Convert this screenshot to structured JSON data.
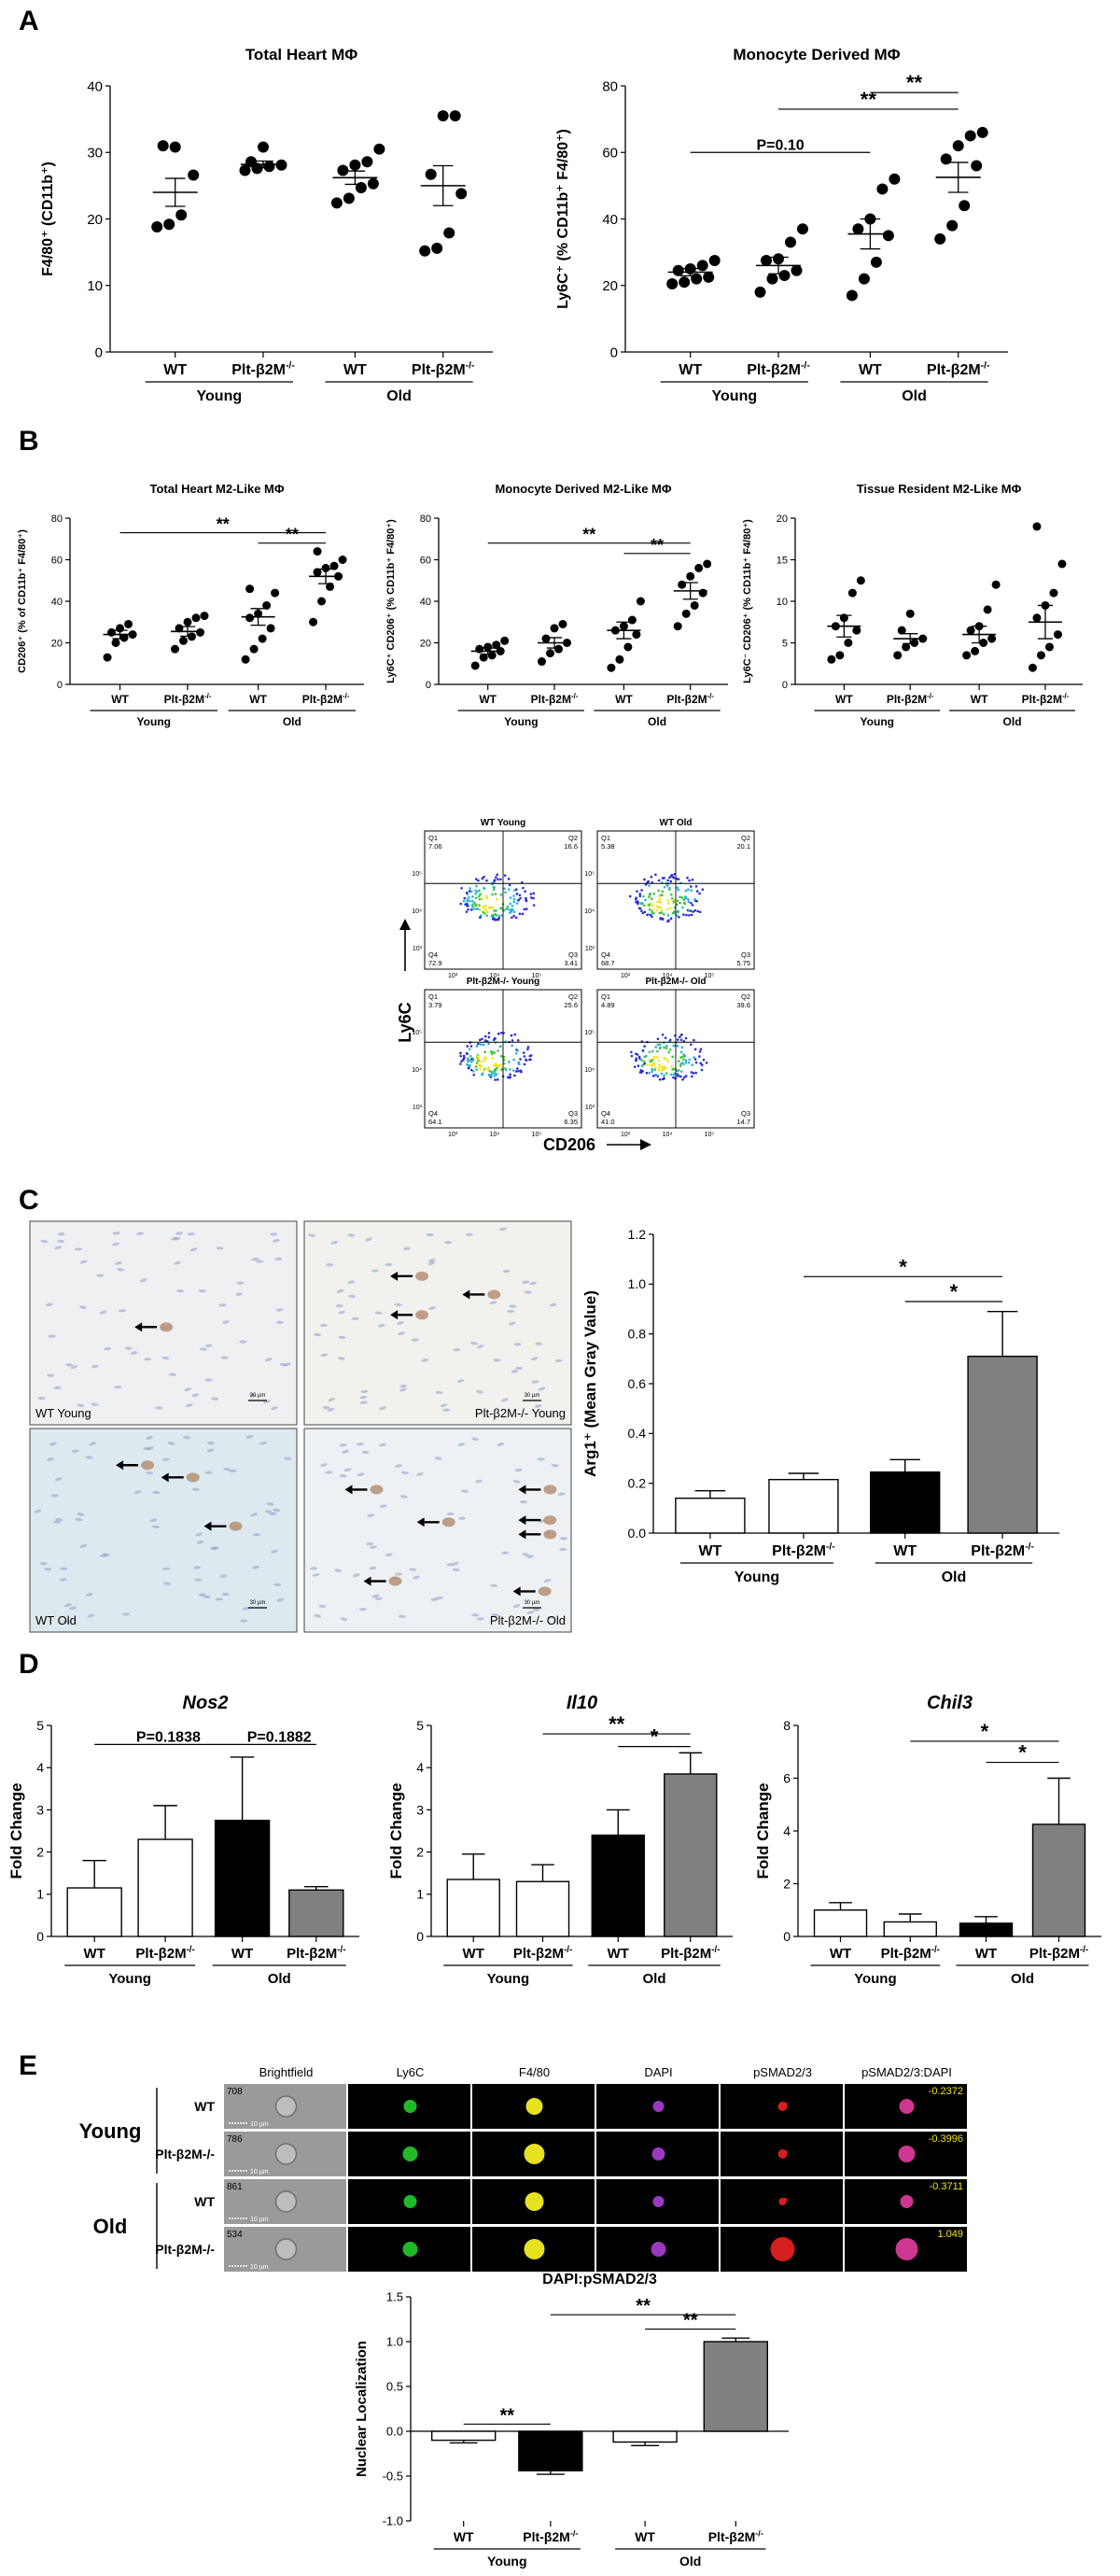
{
  "panel_letters": [
    "A",
    "B",
    "C",
    "D",
    "E"
  ],
  "group_labels": {
    "wt": "WT",
    "plt": "Plt-β2M",
    "plt_sup": "-/-",
    "young": "Young",
    "old": "Old"
  },
  "flow": {
    "panel_titles": [
      "WT Young",
      "WT Old",
      "Plt-β2M-/- Young",
      "Plt-β2M-/- Old"
    ],
    "quadrants": [
      {
        "q1": "7.06",
        "q2": "16.6",
        "q3": "3.41",
        "q4": "72.9"
      },
      {
        "q1": "5.38",
        "q2": "20.1",
        "q3": "5.75",
        "q4": "68.7"
      },
      {
        "q1": "3.79",
        "q2": "25.6",
        "q3": "6.35",
        "q4": "64.1"
      },
      {
        "q1": "4.89",
        "q2": "39.6",
        "q3": "14.7",
        "q4": "41.0"
      }
    ],
    "y_axis": "Ly6C",
    "x_axis": "CD206",
    "tick_labels": [
      "10³",
      "10⁴",
      "10⁵"
    ]
  },
  "histology": {
    "captions": [
      "WT Young",
      "Plt-β2M-/- Young",
      "WT Old",
      "Plt-β2M-/- Old"
    ],
    "scale": "30 µm",
    "arrow_counts": [
      1,
      3,
      3,
      7
    ]
  },
  "imaging": {
    "channels": [
      "Brightfield",
      "Ly6C",
      "F4/80",
      "DAPI",
      "pSMAD2/3",
      "pSMAD2/3:DAPI"
    ],
    "rows": [
      {
        "group": "Young",
        "genotype": "WT",
        "cell_id": "708",
        "score": "-0.2372"
      },
      {
        "group": "Young",
        "genotype": "Plt-β2M-/-",
        "cell_id": "786",
        "score": "-0.3996"
      },
      {
        "group": "Old",
        "genotype": "WT",
        "cell_id": "861",
        "score": "-0.3711"
      },
      {
        "group": "Old",
        "genotype": "Plt-β2M-/-",
        "cell_id": "534",
        "score": "1.049"
      }
    ],
    "scale": "10 µm",
    "colors": {
      "ly6c": "#22c42a",
      "f480": "#f2ee22",
      "dapi": "#a23cc8",
      "psmad": "#e02020",
      "merge": "#d83a9a",
      "score": "#f2e41a"
    }
  },
  "chart_data": [
    {
      "id": "A1",
      "panel": "A",
      "type": "scatter",
      "title": "Total Heart MΦ",
      "ylabel": "F4/80⁺ (CD11b⁺)",
      "ylim": [
        0,
        40
      ],
      "yticks": [
        0,
        10,
        20,
        30,
        40
      ],
      "groups": [
        {
          "values": [
            18.8,
            19.2,
            20.6,
            26.6,
            31.0,
            30.8
          ],
          "mean": 24.0,
          "sem": 2.1
        },
        {
          "values": [
            27.3,
            27.6,
            27.9,
            28.1,
            28.6,
            30.8
          ],
          "mean": 28.2,
          "sem": 0.5
        },
        {
          "values": [
            22.4,
            23.1,
            24.7,
            25.3,
            27.3,
            28.1,
            28.6,
            30.5
          ],
          "mean": 26.2,
          "sem": 1.0
        },
        {
          "values": [
            15.2,
            15.6,
            17.9,
            23.8,
            26.7,
            35.5,
            35.5
          ],
          "mean": 25.0,
          "sem": 3.0
        }
      ],
      "comparisons": []
    },
    {
      "id": "A2",
      "panel": "A",
      "type": "scatter",
      "title": "Monocyte Derived MΦ",
      "ylabel": "Ly6C⁺ (% CD11b⁺ F4/80⁺)",
      "ylim": [
        0,
        80
      ],
      "yticks": [
        0,
        20,
        40,
        60,
        80
      ],
      "groups": [
        {
          "values": [
            20.5,
            21.0,
            22.0,
            22.5,
            24.5,
            25.0,
            26.0,
            27.5
          ],
          "mean": 24.0,
          "sem": 1.1
        },
        {
          "values": [
            18.0,
            22.0,
            23.0,
            24.5,
            27.5,
            28.0,
            33.0,
            37.0
          ],
          "mean": 26.0,
          "sem": 2.5
        },
        {
          "values": [
            17.0,
            22.0,
            27.0,
            35.0,
            37.0,
            40.0,
            49.0,
            52.0
          ],
          "mean": 35.5,
          "sem": 4.5
        },
        {
          "values": [
            34.0,
            38.0,
            44.0,
            56.0,
            58.0,
            62.0,
            65.0,
            66.0
          ],
          "mean": 52.5,
          "sem": 4.5
        }
      ],
      "comparisons": [
        {
          "from": 0,
          "to": 2,
          "label": "P=0.10",
          "y": 60
        },
        {
          "from": 1,
          "to": 3,
          "label": "**",
          "y": 73
        },
        {
          "from": 2,
          "to": 3,
          "label": "**",
          "y": 78
        }
      ]
    },
    {
      "id": "B1",
      "panel": "B",
      "type": "scatter",
      "title": "Total Heart M2-Like MΦ",
      "ylabel": "CD206⁺ (% of CD11b⁺ F4/80⁺)",
      "ylim": [
        0,
        80
      ],
      "yticks": [
        0,
        20,
        40,
        60,
        80
      ],
      "groups": [
        {
          "values": [
            13.0,
            20.0,
            22.5,
            24.0,
            25.0,
            27.0,
            29.0
          ],
          "mean": 24.0,
          "sem": 2.0
        },
        {
          "values": [
            17.0,
            21.0,
            23.0,
            25.0,
            27.0,
            30.0,
            32.0,
            33.0
          ],
          "mean": 25.5,
          "sem": 2.3
        },
        {
          "values": [
            12.0,
            17.0,
            22.0,
            27.0,
            32.0,
            34.0,
            38.0,
            44.0,
            46.0
          ],
          "mean": 32.5,
          "sem": 4.0
        },
        {
          "values": [
            30.0,
            40.0,
            47.0,
            52.0,
            54.0,
            56.0,
            57.0,
            60.0,
            64.0
          ],
          "mean": 52.0,
          "sem": 3.5
        }
      ],
      "comparisons": [
        {
          "from": 0,
          "to": 3,
          "label": "**",
          "y": 73
        },
        {
          "from": 2,
          "to": 3,
          "label": "**",
          "y": 68
        }
      ]
    },
    {
      "id": "B2",
      "panel": "B",
      "type": "scatter",
      "title": "Monocyte Derived M2-Like MΦ",
      "ylabel": "Ly6C⁺ CD206⁺ (% CD11b⁺ F4/80⁺)",
      "ylim": [
        0,
        80
      ],
      "yticks": [
        0,
        20,
        40,
        60,
        80
      ],
      "groups": [
        {
          "values": [
            9.0,
            13.0,
            14.0,
            16.0,
            17.0,
            18.0,
            19.0,
            21.0
          ],
          "mean": 16.0,
          "sem": 1.5
        },
        {
          "values": [
            11.0,
            15.0,
            17.0,
            20.0,
            22.0,
            27.0,
            29.0
          ],
          "mean": 20.0,
          "sem": 2.5
        },
        {
          "values": [
            8.0,
            12.0,
            18.0,
            24.0,
            26.0,
            28.0,
            31.0,
            40.0
          ],
          "mean": 26.0,
          "sem": 4.0
        },
        {
          "values": [
            28.0,
            34.0,
            38.0,
            44.0,
            48.0,
            52.0,
            56.0,
            58.0
          ],
          "mean": 45.0,
          "sem": 4.0
        }
      ],
      "comparisons": [
        {
          "from": 0,
          "to": 3,
          "label": "**",
          "y": 68
        },
        {
          "from": 2,
          "to": 3,
          "label": "**",
          "y": 63
        }
      ]
    },
    {
      "id": "B3",
      "panel": "B",
      "type": "scatter",
      "title": "Tissue Resident M2-Like MΦ",
      "ylabel": "Ly6C⁻ CD206⁺ (% CD11b⁺ F4/80⁺)",
      "ylim": [
        0,
        20
      ],
      "yticks": [
        0,
        5,
        10,
        15,
        20
      ],
      "groups": [
        {
          "values": [
            3.0,
            3.5,
            5.0,
            6.5,
            7.0,
            8.0,
            11.0,
            12.5
          ],
          "mean": 7.0,
          "sem": 1.3
        },
        {
          "values": [
            3.5,
            4.5,
            5.0,
            5.5,
            6.5,
            8.5
          ],
          "mean": 5.5,
          "sem": 0.6
        },
        {
          "values": [
            3.5,
            4.0,
            5.0,
            5.5,
            6.5,
            7.0,
            9.0,
            12.0
          ],
          "mean": 6.0,
          "sem": 1.0
        },
        {
          "values": [
            2.0,
            3.5,
            4.5,
            6.0,
            8.0,
            9.5,
            11.0,
            14.5,
            19.0
          ],
          "mean": 7.5,
          "sem": 2.0
        }
      ],
      "comparisons": []
    },
    {
      "id": "C",
      "panel": "C",
      "type": "bar",
      "title": "",
      "ylabel": "Arg1⁺ (Mean Gray Value)",
      "ylim": [
        0,
        1.2
      ],
      "yticks": [
        0.0,
        0.2,
        0.4,
        0.6,
        0.8,
        1.0,
        1.2
      ],
      "values": [
        0.14,
        0.215,
        0.245,
        0.71
      ],
      "errors": [
        0.03,
        0.025,
        0.05,
        0.18
      ],
      "fills": [
        "#ffffff",
        "#ffffff",
        "#000000",
        "#808080"
      ],
      "comparisons": [
        {
          "from": 1,
          "to": 3,
          "label": "*",
          "y": 1.03
        },
        {
          "from": 2,
          "to": 3,
          "label": "*",
          "y": 0.93
        }
      ]
    },
    {
      "id": "D1",
      "panel": "D",
      "type": "bar",
      "title": "Nos2",
      "ylabel": "Fold Change",
      "ylim": [
        0,
        5
      ],
      "yticks": [
        0,
        1,
        2,
        3,
        4,
        5
      ],
      "values": [
        1.15,
        2.3,
        2.75,
        1.1
      ],
      "errors": [
        0.65,
        0.8,
        1.5,
        0.08
      ],
      "fills": [
        "#ffffff",
        "#ffffff",
        "#000000",
        "#808080"
      ],
      "comparisons": [
        {
          "from": 0,
          "to": 2,
          "label": "P=0.1838",
          "y": 4.55
        },
        {
          "from": 2,
          "to": 3,
          "label": "P=0.1882",
          "y": 4.55
        }
      ]
    },
    {
      "id": "D2",
      "panel": "D",
      "type": "bar",
      "title": "Il10",
      "ylabel": "Fold Change",
      "ylim": [
        0,
        5
      ],
      "yticks": [
        0,
        1,
        2,
        3,
        4,
        5
      ],
      "values": [
        1.35,
        1.3,
        2.4,
        3.85
      ],
      "errors": [
        0.6,
        0.4,
        0.6,
        0.5
      ],
      "fills": [
        "#ffffff",
        "#ffffff",
        "#000000",
        "#808080"
      ],
      "comparisons": [
        {
          "from": 1,
          "to": 3,
          "label": "**",
          "y": 4.8
        },
        {
          "from": 2,
          "to": 3,
          "label": "*",
          "y": 4.5
        }
      ]
    },
    {
      "id": "D3",
      "panel": "D",
      "type": "bar",
      "title": "Chil3",
      "ylabel": "Fold Change",
      "ylim": [
        0,
        8
      ],
      "yticks": [
        0,
        2,
        4,
        6,
        8
      ],
      "values": [
        1.0,
        0.55,
        0.5,
        4.25
      ],
      "errors": [
        0.28,
        0.3,
        0.25,
        1.75
      ],
      "fills": [
        "#ffffff",
        "#ffffff",
        "#000000",
        "#808080"
      ],
      "comparisons": [
        {
          "from": 1,
          "to": 3,
          "label": "*",
          "y": 7.4
        },
        {
          "from": 2,
          "to": 3,
          "label": "*",
          "y": 6.6
        }
      ]
    },
    {
      "id": "E",
      "panel": "E",
      "type": "bar",
      "title": "DAPI:pSMAD2/3",
      "ylabel": "Nuclear Localization",
      "ylim": [
        -1.0,
        1.5
      ],
      "yticks": [
        -1.0,
        -0.5,
        0.0,
        0.5,
        1.0,
        1.5
      ],
      "values": [
        -0.1,
        -0.44,
        -0.12,
        1.0
      ],
      "errors": [
        0.03,
        0.04,
        0.04,
        0.04
      ],
      "fills": [
        "#ffffff",
        "#000000",
        "#ffffff",
        "#808080"
      ],
      "comparisons": [
        {
          "from": 0,
          "to": 1,
          "label": "**",
          "y": 0.08
        },
        {
          "from": 1,
          "to": 3,
          "label": "**",
          "y": 1.3
        },
        {
          "from": 2,
          "to": 3,
          "label": "**",
          "y": 1.14
        }
      ]
    }
  ]
}
